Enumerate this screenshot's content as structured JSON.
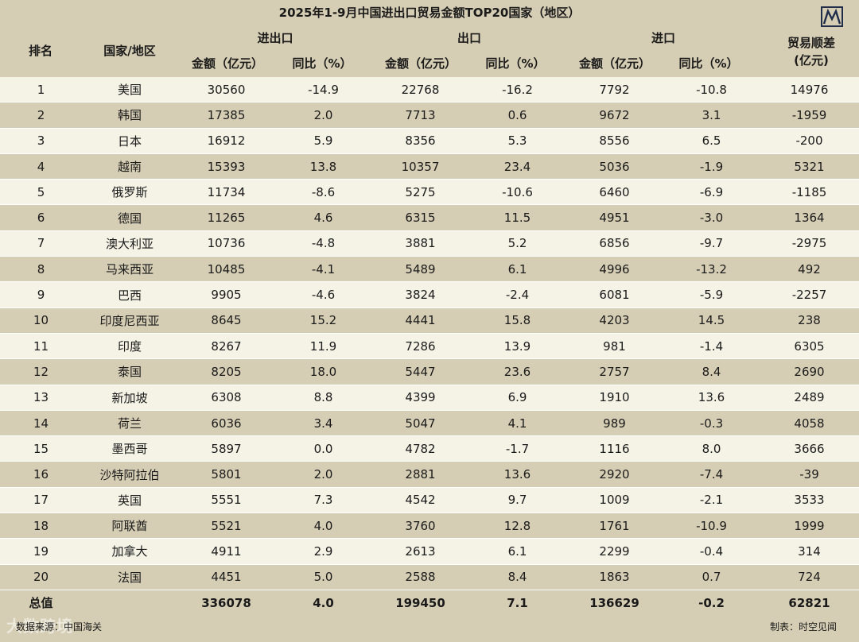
{
  "title": "2025年1-9月中国进出口贸易金额TOP20国家（地区）",
  "logo_icon": "mountain-logo-icon",
  "headers": {
    "rank": "排名",
    "country": "国家/地区",
    "total_group": "进出口",
    "export_group": "出口",
    "import_group": "进口",
    "amount": "金额（亿元）",
    "yoy": "同比（%）",
    "surplus_line1": "贸易顺差",
    "surplus_line2": "(亿元)"
  },
  "rows": [
    {
      "rank": "1",
      "country": "美国",
      "total": "30560",
      "total_yoy": "-14.9",
      "export": "22768",
      "export_yoy": "-16.2",
      "import": "7792",
      "import_yoy": "-10.8",
      "surplus": "14976"
    },
    {
      "rank": "2",
      "country": "韩国",
      "total": "17385",
      "total_yoy": "2.0",
      "export": "7713",
      "export_yoy": "0.6",
      "import": "9672",
      "import_yoy": "3.1",
      "surplus": "-1959"
    },
    {
      "rank": "3",
      "country": "日本",
      "total": "16912",
      "total_yoy": "5.9",
      "export": "8356",
      "export_yoy": "5.3",
      "import": "8556",
      "import_yoy": "6.5",
      "surplus": "-200"
    },
    {
      "rank": "4",
      "country": "越南",
      "total": "15393",
      "total_yoy": "13.8",
      "export": "10357",
      "export_yoy": "23.4",
      "import": "5036",
      "import_yoy": "-1.9",
      "surplus": "5321"
    },
    {
      "rank": "5",
      "country": "俄罗斯",
      "total": "11734",
      "total_yoy": "-8.6",
      "export": "5275",
      "export_yoy": "-10.6",
      "import": "6460",
      "import_yoy": "-6.9",
      "surplus": "-1185"
    },
    {
      "rank": "6",
      "country": "德国",
      "total": "11265",
      "total_yoy": "4.6",
      "export": "6315",
      "export_yoy": "11.5",
      "import": "4951",
      "import_yoy": "-3.0",
      "surplus": "1364"
    },
    {
      "rank": "7",
      "country": "澳大利亚",
      "total": "10736",
      "total_yoy": "-4.8",
      "export": "3881",
      "export_yoy": "5.2",
      "import": "6856",
      "import_yoy": "-9.7",
      "surplus": "-2975"
    },
    {
      "rank": "8",
      "country": "马来西亚",
      "total": "10485",
      "total_yoy": "-4.1",
      "export": "5489",
      "export_yoy": "6.1",
      "import": "4996",
      "import_yoy": "-13.2",
      "surplus": "492"
    },
    {
      "rank": "9",
      "country": "巴西",
      "total": "9905",
      "total_yoy": "-4.6",
      "export": "3824",
      "export_yoy": "-2.4",
      "import": "6081",
      "import_yoy": "-5.9",
      "surplus": "-2257"
    },
    {
      "rank": "10",
      "country": "印度尼西亚",
      "total": "8645",
      "total_yoy": "15.2",
      "export": "4441",
      "export_yoy": "15.8",
      "import": "4203",
      "import_yoy": "14.5",
      "surplus": "238"
    },
    {
      "rank": "11",
      "country": "印度",
      "total": "8267",
      "total_yoy": "11.9",
      "export": "7286",
      "export_yoy": "13.9",
      "import": "981",
      "import_yoy": "-1.4",
      "surplus": "6305"
    },
    {
      "rank": "12",
      "country": "泰国",
      "total": "8205",
      "total_yoy": "18.0",
      "export": "5447",
      "export_yoy": "23.6",
      "import": "2757",
      "import_yoy": "8.4",
      "surplus": "2690"
    },
    {
      "rank": "13",
      "country": "新加坡",
      "total": "6308",
      "total_yoy": "8.8",
      "export": "4399",
      "export_yoy": "6.9",
      "import": "1910",
      "import_yoy": "13.6",
      "surplus": "2489"
    },
    {
      "rank": "14",
      "country": "荷兰",
      "total": "6036",
      "total_yoy": "3.4",
      "export": "5047",
      "export_yoy": "4.1",
      "import": "989",
      "import_yoy": "-0.3",
      "surplus": "4058"
    },
    {
      "rank": "15",
      "country": "墨西哥",
      "total": "5897",
      "total_yoy": "0.0",
      "export": "4782",
      "export_yoy": "-1.7",
      "import": "1116",
      "import_yoy": "8.0",
      "surplus": "3666"
    },
    {
      "rank": "16",
      "country": "沙特阿拉伯",
      "total": "5801",
      "total_yoy": "2.0",
      "export": "2881",
      "export_yoy": "13.6",
      "import": "2920",
      "import_yoy": "-7.4",
      "surplus": "-39"
    },
    {
      "rank": "17",
      "country": "英国",
      "total": "5551",
      "total_yoy": "7.3",
      "export": "4542",
      "export_yoy": "9.7",
      "import": "1009",
      "import_yoy": "-2.1",
      "surplus": "3533"
    },
    {
      "rank": "18",
      "country": "阿联酋",
      "total": "5521",
      "total_yoy": "4.0",
      "export": "3760",
      "export_yoy": "12.8",
      "import": "1761",
      "import_yoy": "-10.9",
      "surplus": "1999"
    },
    {
      "rank": "19",
      "country": "加拿大",
      "total": "4911",
      "total_yoy": "2.9",
      "export": "2613",
      "export_yoy": "6.1",
      "import": "2299",
      "import_yoy": "-0.4",
      "surplus": "314"
    },
    {
      "rank": "20",
      "country": "法国",
      "total": "4451",
      "total_yoy": "5.0",
      "export": "2588",
      "export_yoy": "8.4",
      "import": "1863",
      "import_yoy": "0.7",
      "surplus": "724"
    }
  ],
  "total_row": {
    "label": "总值",
    "total": "336078",
    "total_yoy": "4.0",
    "export": "199450",
    "export_yoy": "7.1",
    "import": "136629",
    "import_yoy": "-0.2",
    "surplus": "62821"
  },
  "footer": {
    "source": "数据来源：中国海关",
    "credit": "制表：时空见闻",
    "watermark": "大数跨境"
  },
  "colors": {
    "background": "#d6ceb4",
    "row_light": "#f5f2e6",
    "divider": "#ffffff"
  }
}
